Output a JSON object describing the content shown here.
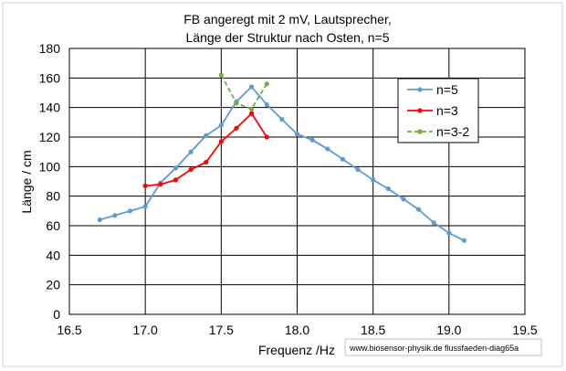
{
  "chart_data": {
    "type": "line",
    "title": [
      "FB angeregt mit 2 mV, Lautsprecher,",
      "Länge der Struktur nach Osten, n=5"
    ],
    "xlabel": "Frequenz /Hz",
    "ylabel": "Länge  / cm",
    "xlim": [
      16.5,
      19.5
    ],
    "ylim": [
      0,
      180
    ],
    "x_ticks": [
      "16.5",
      "17.0",
      "17.5",
      "18.0",
      "18.5",
      "19.0",
      "19.5"
    ],
    "y_ticks": [
      "0",
      "20",
      "40",
      "60",
      "80",
      "100",
      "120",
      "140",
      "160",
      "180"
    ],
    "grid": true,
    "legend_position": "top-right",
    "series": [
      {
        "name": "n=5",
        "color": "#5b9bd5",
        "line_style": "solid",
        "x": [
          16.7,
          16.8,
          16.9,
          17.0,
          17.1,
          17.2,
          17.3,
          17.4,
          17.5,
          17.6,
          17.7,
          17.8,
          17.9,
          18.0,
          18.1,
          18.2,
          18.3,
          18.4,
          18.5,
          18.6,
          18.7,
          18.8,
          18.9,
          19.0,
          19.1
        ],
        "y": [
          64,
          67,
          70,
          73,
          89,
          99,
          110,
          121,
          128,
          144,
          154,
          142,
          132,
          122,
          118,
          112,
          105,
          98,
          91,
          85,
          78,
          71,
          62,
          55,
          50
        ]
      },
      {
        "name": "n=3",
        "color": "#ff0000",
        "line_style": "solid",
        "x": [
          17.0,
          17.1,
          17.2,
          17.3,
          17.4,
          17.5,
          17.6,
          17.7,
          17.8
        ],
        "y": [
          87,
          88,
          91,
          98,
          103,
          117,
          126,
          136,
          120
        ]
      },
      {
        "name": "n=3-2",
        "color": "#70ad47",
        "line_style": "dashed",
        "x": [
          17.5,
          17.6,
          17.7,
          17.8
        ],
        "y": [
          162,
          143,
          139,
          156
        ]
      }
    ],
    "annotations": [
      "www.biosensor-physik.de  flussfaeden-diag65a"
    ]
  }
}
